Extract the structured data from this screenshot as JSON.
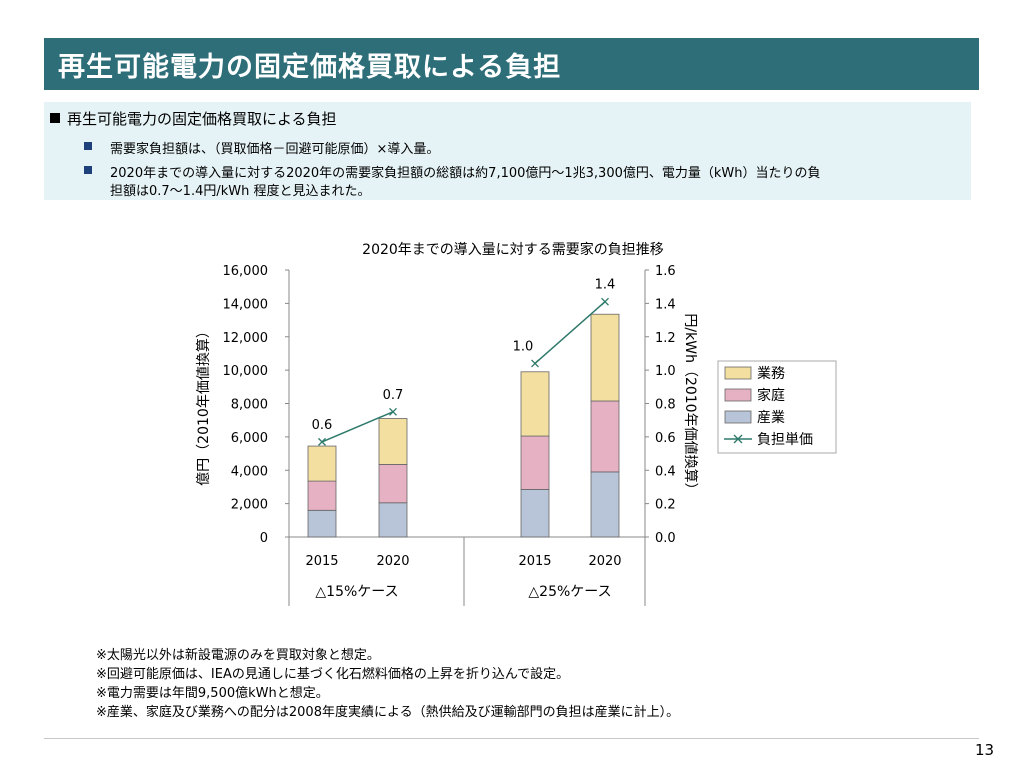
{
  "title": "再生可能電力の固定価格買取による負担",
  "summary": {
    "heading": "再生可能電力の固定価格買取による負担",
    "bullets": [
      "需要家負担額は、（買取価格－回避可能原価）×導入量。",
      "2020年までの導入量に対する2020年の需要家負担額の総額は約7,100億円～1兆3,300億円、電力量（kWh）当たりの負",
      "担額は0.7～1.4円/kWh 程度と見込まれた。"
    ]
  },
  "chart_data": {
    "type": "bar",
    "stacked": true,
    "title": "2020年までの導入量に対する需要家の負担推移",
    "ylabel_left": "億円（2010年価値換算）",
    "ylabel_right": "円/kWh（2010年価値換算）",
    "ylim_left": [
      0,
      16000
    ],
    "ylim_right": [
      0,
      1.6
    ],
    "yticks_left": [
      "0",
      "2,000",
      "4,000",
      "6,000",
      "8,000",
      "10,000",
      "12,000",
      "14,000",
      "16,000"
    ],
    "yticks_right": [
      "0.0",
      "0.2",
      "0.4",
      "0.6",
      "0.8",
      "1.0",
      "1.2",
      "1.4",
      "1.6"
    ],
    "categories": [
      "2015",
      "2020",
      "2015",
      "2020"
    ],
    "groups": [
      {
        "label": "△15%ケース",
        "categories": [
          "2015",
          "2020"
        ]
      },
      {
        "label": "△25%ケース",
        "categories": [
          "2015",
          "2020"
        ]
      }
    ],
    "series": [
      {
        "name": "産業",
        "color": "#b8c4d8",
        "values": [
          1600,
          2050,
          2850,
          3900
        ]
      },
      {
        "name": "家庭",
        "color": "#e6b1c2",
        "values": [
          1750,
          2300,
          3200,
          4250
        ]
      },
      {
        "name": "業務",
        "color": "#f3dfa0",
        "values": [
          2100,
          2750,
          3850,
          5200
        ]
      }
    ],
    "line_series": {
      "name": "負担単価",
      "color": "#2e7a6a",
      "axis": "right",
      "values": [
        0.57,
        0.75,
        1.04,
        1.41
      ],
      "labels": [
        "0.6",
        "0.7",
        "1.0",
        "1.4"
      ]
    },
    "legend_position": "right",
    "grid": false
  },
  "notes": [
    "※太陽光以外は新設電源のみを買取対象と想定。",
    "※回避可能原価は、IEAの見通しに基づく化石燃料価格の上昇を折り込んで設定。",
    "※電力需要は年間9,500億kWhと想定。",
    "※産業、家庭及び業務への配分は2008年度実績による（熱供給及び運輸部門の負担は産業に計上）。"
  ],
  "page_number": "13"
}
